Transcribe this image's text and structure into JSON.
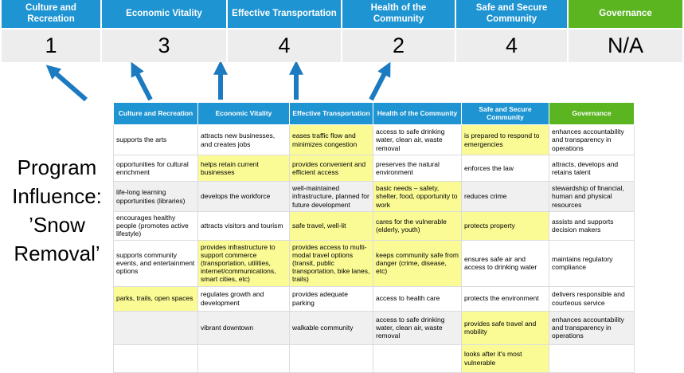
{
  "colors": {
    "header_blue": "#1E94D2",
    "header_green": "#5BB521",
    "highlight_yellow": "#FBFB96",
    "score_band_gray": "#EDEDED",
    "row_band_gray": "#F0F0F0",
    "arrow_blue": "#1C7AC0",
    "cell_border": "#DCDCDC"
  },
  "banner": {
    "categories": [
      {
        "label": "Culture and Recreation",
        "score": "1",
        "accent": "blue"
      },
      {
        "label": "Economic Vitality",
        "score": "3",
        "accent": "blue"
      },
      {
        "label": "Effective Transportation",
        "score": "4",
        "accent": "blue"
      },
      {
        "label": "Health of the Community",
        "score": "2",
        "accent": "blue"
      },
      {
        "label": "Safe and Secure Community",
        "score": "4",
        "accent": "blue"
      },
      {
        "label": "Governance",
        "score": "N/A",
        "accent": "green"
      }
    ]
  },
  "program_title": {
    "lines": [
      "Program",
      "Influence:",
      "’Snow",
      "Removal’"
    ]
  },
  "table": {
    "columns": [
      {
        "label": "Culture and Recreation",
        "accent": "blue"
      },
      {
        "label": "Economic Vitality",
        "accent": "blue"
      },
      {
        "label": "Effective Transportation",
        "accent": "blue"
      },
      {
        "label": "Health of the Community",
        "accent": "blue"
      },
      {
        "label": "Safe and Secure Community",
        "accent": "blue"
      },
      {
        "label": "Governance",
        "accent": "green"
      }
    ],
    "rows": [
      [
        {
          "text": "supports the arts",
          "bg": "white"
        },
        {
          "text": "attracts new businesses, and creates jobs",
          "bg": "white"
        },
        {
          "text": "eases traffic flow and minimizes congestion",
          "bg": "yellow"
        },
        {
          "text": "access to safe drinking water, clean air, waste removal",
          "bg": "white"
        },
        {
          "text": "is prepared to respond to emergencies",
          "bg": "yellow"
        },
        {
          "text": "enhances accountability and transparency in operations",
          "bg": "white"
        }
      ],
      [
        {
          "text": "opportunities for cultural enrichment",
          "bg": "white"
        },
        {
          "text": "helps retain current businesses",
          "bg": "yellow"
        },
        {
          "text": "provides convenient and efficient access",
          "bg": "yellow"
        },
        {
          "text": "preserves the natural environment",
          "bg": "white"
        },
        {
          "text": "enforces the law",
          "bg": "white"
        },
        {
          "text": "attracts, develops and retains talent",
          "bg": "white"
        }
      ],
      [
        {
          "text": "life-long learning opportunities (libraries)",
          "bg": "gray"
        },
        {
          "text": "develops the workforce",
          "bg": "gray"
        },
        {
          "text": "well-maintained infrastructure, planned for future development",
          "bg": "gray"
        },
        {
          "text": "basic needs – safety, shelter, food, opportunity to work",
          "bg": "yellow"
        },
        {
          "text": "reduces crime",
          "bg": "gray"
        },
        {
          "text": "stewardship of financial, human and physical resources",
          "bg": "gray"
        }
      ],
      [
        {
          "text": "encourages healthy people (promotes active lifestyle)",
          "bg": "white"
        },
        {
          "text": "attracts visitors and tourism",
          "bg": "white"
        },
        {
          "text": "safe travel, well-lit",
          "bg": "yellow"
        },
        {
          "text": "cares for the vulnerable (elderly, youth)",
          "bg": "yellow"
        },
        {
          "text": "protects property",
          "bg": "yellow"
        },
        {
          "text": "assists and supports decision makers",
          "bg": "white"
        }
      ],
      [
        {
          "text": "supports community events, and entertainment options",
          "bg": "white"
        },
        {
          "text": "provides infrastructure to support commerce (transportation, utilities, internet/communications, smart cities, etc)",
          "bg": "yellow"
        },
        {
          "text": "provides access to multi-modal travel options (transit, public transportation, bike lanes, trails)",
          "bg": "yellow"
        },
        {
          "text": "keeps community safe from danger (crime, disease, etc)",
          "bg": "yellow"
        },
        {
          "text": "ensures safe air and access to drinking water",
          "bg": "white"
        },
        {
          "text": "maintains regulatory compliance",
          "bg": "white"
        }
      ],
      [
        {
          "text": "parks, trails, open spaces",
          "bg": "yellow"
        },
        {
          "text": "regulates growth and development",
          "bg": "white"
        },
        {
          "text": "provides adequate parking",
          "bg": "white"
        },
        {
          "text": "access to health care",
          "bg": "white"
        },
        {
          "text": "protects the environment",
          "bg": "white"
        },
        {
          "text": "delivers responsible and courteous service",
          "bg": "white"
        }
      ],
      [
        {
          "text": "",
          "bg": "gray"
        },
        {
          "text": "vibrant downtown",
          "bg": "gray"
        },
        {
          "text": "walkable community",
          "bg": "gray"
        },
        {
          "text": "access to safe drinking water, clean air, waste removal",
          "bg": "gray"
        },
        {
          "text": "provides safe travel and mobility",
          "bg": "yellow"
        },
        {
          "text": "enhances accountability and transparency in operations",
          "bg": "gray"
        }
      ],
      [
        {
          "text": "",
          "bg": "white"
        },
        {
          "text": "",
          "bg": "white"
        },
        {
          "text": "",
          "bg": "white"
        },
        {
          "text": "",
          "bg": "white"
        },
        {
          "text": "looks after it's most vulnerable",
          "bg": "yellow"
        },
        {
          "text": "",
          "bg": "white"
        }
      ]
    ]
  }
}
